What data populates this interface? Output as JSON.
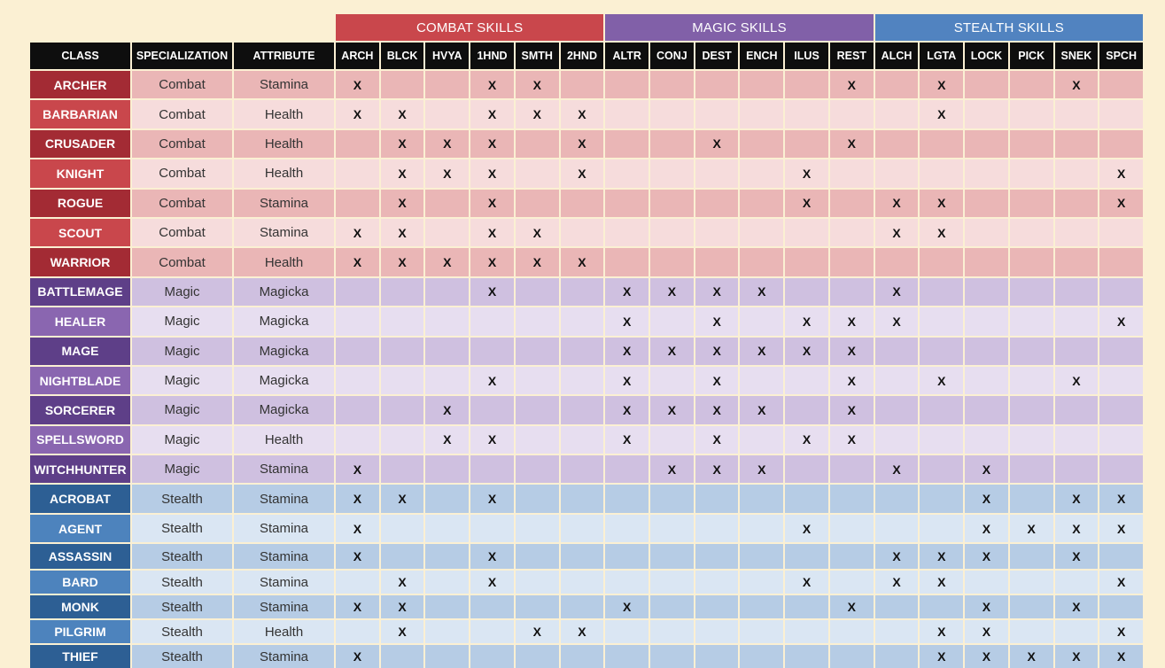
{
  "colors": {
    "page_background": "#fbf0d3",
    "combat": {
      "group": "#c9474c",
      "class_dark": "#a32b34",
      "class_light": "#c9474c",
      "row_dark": "#eab6b6",
      "row_light": "#f6dcdc"
    },
    "magic": {
      "group": "#8160a8",
      "class_dark": "#5e3f88",
      "class_light": "#8a66b0",
      "row_dark": "#cfc0e0",
      "row_light": "#e7def0"
    },
    "stealth": {
      "group": "#5183c0",
      "class_dark": "#2d5f94",
      "class_light": "#4d83bd",
      "row_dark": "#b6cce5",
      "row_light": "#dae6f3"
    },
    "header": "#0e0e0e"
  },
  "groups": [
    {
      "label": "COMBAT SKILLS",
      "key": "combat"
    },
    {
      "label": "MAGIC SKILLS",
      "key": "magic"
    },
    {
      "label": "STEALTH SKILLS",
      "key": "stealth"
    }
  ],
  "column_headers": [
    "CLASS",
    "SPECIALIZATION",
    "ATTRIBUTE",
    "ARCH",
    "BLCK",
    "HVYA",
    "1HND",
    "SMTH",
    "2HND",
    "ALTR",
    "CONJ",
    "DEST",
    "ENCH",
    "ILUS",
    "REST",
    "ALCH",
    "LGTA",
    "LOCK",
    "PICK",
    "SNEK",
    "SPCH"
  ],
  "mark_symbol": "X",
  "rows": [
    {
      "class": "ARCHER",
      "spec": "Combat",
      "attr": "Stamina",
      "group": "combat",
      "skills": [
        "ARCH",
        "1HND",
        "SMTH",
        "REST",
        "LGTA",
        "SNEK"
      ]
    },
    {
      "class": "BARBARIAN",
      "spec": "Combat",
      "attr": "Health",
      "group": "combat",
      "skills": [
        "ARCH",
        "BLCK",
        "1HND",
        "SMTH",
        "2HND",
        "LGTA"
      ]
    },
    {
      "class": "CRUSADER",
      "spec": "Combat",
      "attr": "Health",
      "group": "combat",
      "skills": [
        "BLCK",
        "HVYA",
        "1HND",
        "2HND",
        "DEST",
        "REST"
      ]
    },
    {
      "class": "KNIGHT",
      "spec": "Combat",
      "attr": "Health",
      "group": "combat",
      "skills": [
        "BLCK",
        "HVYA",
        "1HND",
        "2HND",
        "ILUS",
        "SPCH"
      ]
    },
    {
      "class": "ROGUE",
      "spec": "Combat",
      "attr": "Stamina",
      "group": "combat",
      "skills": [
        "BLCK",
        "1HND",
        "ILUS",
        "ALCH",
        "LGTA",
        "SPCH"
      ]
    },
    {
      "class": "SCOUT",
      "spec": "Combat",
      "attr": "Stamina",
      "group": "combat",
      "skills": [
        "ARCH",
        "BLCK",
        "1HND",
        "SMTH",
        "ALCH",
        "LGTA"
      ]
    },
    {
      "class": "WARRIOR",
      "spec": "Combat",
      "attr": "Health",
      "group": "combat",
      "skills": [
        "ARCH",
        "BLCK",
        "HVYA",
        "1HND",
        "SMTH",
        "2HND"
      ]
    },
    {
      "class": "BATTLEMAGE",
      "spec": "Magic",
      "attr": "Magicka",
      "group": "magic",
      "skills": [
        "1HND",
        "ALTR",
        "CONJ",
        "DEST",
        "ENCH",
        "ALCH"
      ]
    },
    {
      "class": "HEALER",
      "spec": "Magic",
      "attr": "Magicka",
      "group": "magic",
      "skills": [
        "ALTR",
        "DEST",
        "ILUS",
        "REST",
        "ALCH",
        "SPCH"
      ]
    },
    {
      "class": "MAGE",
      "spec": "Magic",
      "attr": "Magicka",
      "group": "magic",
      "skills": [
        "ALTR",
        "CONJ",
        "DEST",
        "ENCH",
        "ILUS",
        "REST"
      ]
    },
    {
      "class": "NIGHTBLADE",
      "spec": "Magic",
      "attr": "Magicka",
      "group": "magic",
      "skills": [
        "1HND",
        "ALTR",
        "DEST",
        "REST",
        "LGTA",
        "SNEK"
      ]
    },
    {
      "class": "SORCERER",
      "spec": "Magic",
      "attr": "Magicka",
      "group": "magic",
      "skills": [
        "HVYA",
        "ALTR",
        "CONJ",
        "DEST",
        "ENCH",
        "REST"
      ]
    },
    {
      "class": "SPELLSWORD",
      "spec": "Magic",
      "attr": "Health",
      "group": "magic",
      "skills": [
        "HVYA",
        "1HND",
        "ALTR",
        "DEST",
        "ILUS",
        "REST"
      ]
    },
    {
      "class": "WITCHHUNTER",
      "spec": "Magic",
      "attr": "Stamina",
      "group": "magic",
      "skills": [
        "ARCH",
        "CONJ",
        "DEST",
        "ENCH",
        "ALCH",
        "LOCK"
      ]
    },
    {
      "class": "ACROBAT",
      "spec": "Stealth",
      "attr": "Stamina",
      "group": "stealth",
      "skills": [
        "ARCH",
        "BLCK",
        "1HND",
        "LOCK",
        "SNEK",
        "SPCH"
      ]
    },
    {
      "class": "AGENT",
      "spec": "Stealth",
      "attr": "Stamina",
      "group": "stealth",
      "skills": [
        "ARCH",
        "ILUS",
        "LOCK",
        "PICK",
        "SNEK",
        "SPCH"
      ]
    },
    {
      "class": "ASSASSIN",
      "spec": "Stealth",
      "attr": "Stamina",
      "group": "stealth",
      "skills": [
        "ARCH",
        "1HND",
        "ALCH",
        "LGTA",
        "LOCK",
        "SNEK"
      ]
    },
    {
      "class": "BARD",
      "spec": "Stealth",
      "attr": "Stamina",
      "group": "stealth",
      "skills": [
        "BLCK",
        "1HND",
        "ILUS",
        "ALCH",
        "LGTA",
        "SPCH"
      ]
    },
    {
      "class": "MONK",
      "spec": "Stealth",
      "attr": "Stamina",
      "group": "stealth",
      "skills": [
        "ARCH",
        "BLCK",
        "ALTR",
        "REST",
        "LOCK",
        "SNEK"
      ]
    },
    {
      "class": "PILGRIM",
      "spec": "Stealth",
      "attr": "Health",
      "group": "stealth",
      "skills": [
        "BLCK",
        "SMTH",
        "2HND",
        "LGTA",
        "LOCK",
        "SPCH"
      ]
    },
    {
      "class": "THIEF",
      "spec": "Stealth",
      "attr": "Stamina",
      "group": "stealth",
      "skills": [
        "ARCH",
        "LGTA",
        "LOCK",
        "PICK",
        "SNEK",
        "SPCH"
      ]
    }
  ]
}
